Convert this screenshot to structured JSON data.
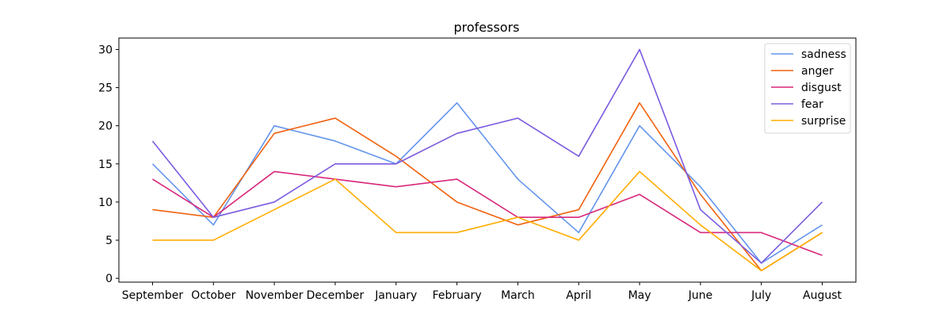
{
  "chart_data": {
    "type": "line",
    "title": "professors",
    "xlabel": "",
    "ylabel": "",
    "categories": [
      "September",
      "October",
      "November",
      "December",
      "January",
      "February",
      "March",
      "April",
      "May",
      "June",
      "July",
      "August"
    ],
    "ylim": [
      -0.5,
      31.5
    ],
    "yticks": [
      0,
      5,
      10,
      15,
      20,
      25,
      30
    ],
    "grid": false,
    "legend_position": "top-right",
    "series": [
      {
        "name": "sadness",
        "color": "#6495ED",
        "values": [
          15,
          7,
          20,
          18,
          15,
          23,
          13,
          6,
          20,
          12,
          2,
          7
        ]
      },
      {
        "name": "anger",
        "color": "#F0620F",
        "values": [
          9,
          8,
          19,
          21,
          16,
          10,
          7,
          9,
          23,
          11,
          1,
          6
        ]
      },
      {
        "name": "disgust",
        "color": "#D8277C",
        "values": [
          13,
          8,
          14,
          13,
          12,
          13,
          8,
          8,
          11,
          6,
          6,
          3
        ]
      },
      {
        "name": "fear",
        "color": "#7B5BE0",
        "values": [
          18,
          8,
          10,
          15,
          15,
          19,
          21,
          16,
          30,
          9,
          2,
          10
        ]
      },
      {
        "name": "surprise",
        "color": "#FFAD00",
        "values": [
          5,
          5,
          9,
          13,
          6,
          6,
          8,
          5,
          14,
          7,
          1,
          6
        ]
      }
    ]
  }
}
